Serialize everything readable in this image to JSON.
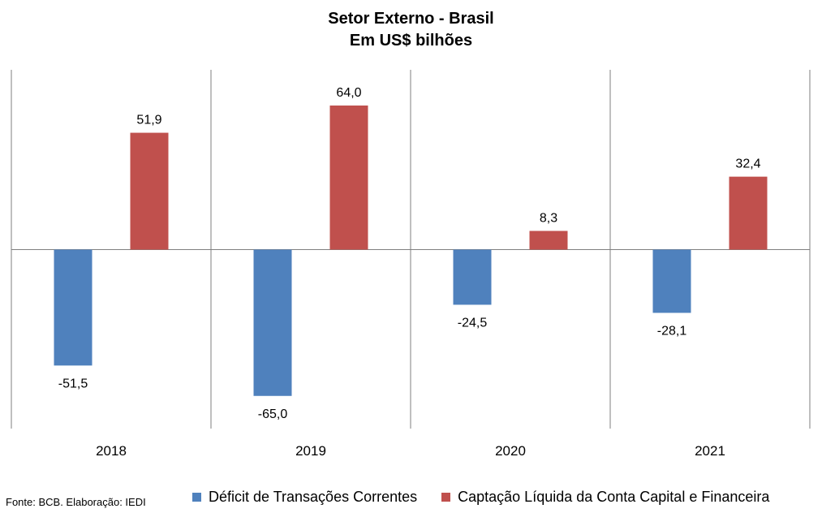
{
  "chart_data": {
    "type": "bar",
    "title": "Setor Externo - Brasil",
    "subtitle": "Em US$ bilhões",
    "categories": [
      "2018",
      "2019",
      "2020",
      "2021"
    ],
    "series": [
      {
        "name": "Déficit de Transações Correntes",
        "values": [
          -51.5,
          -65.0,
          -24.5,
          -28.1
        ],
        "labels": [
          "-51,5",
          "-65,0",
          "-24,5",
          "-28,1"
        ],
        "color": "#4f81bd"
      },
      {
        "name": "Captação Líquida da Conta Capital e Financeira",
        "values": [
          51.9,
          64.0,
          8.3,
          32.4
        ],
        "labels": [
          "51,9",
          "64,0",
          "8,3",
          "32,4"
        ],
        "color": "#c0504d"
      }
    ],
    "ylim": [
      -79,
      80
    ],
    "grid": false,
    "legend_position": "bottom"
  },
  "source": "Fonte: BCB. Elaboração: IEDI"
}
